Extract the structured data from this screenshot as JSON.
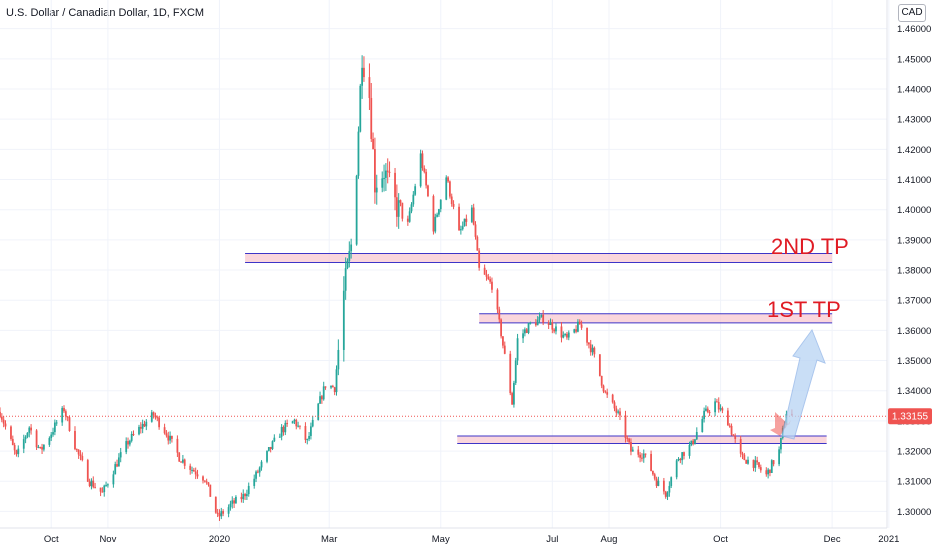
{
  "header": {
    "title": "U.S. Dollar / Canadian Dollar, 1D, FXCM",
    "currency_badge": "CAD"
  },
  "price_label": "1.33155",
  "colors": {
    "up": "#26a69a",
    "down": "#ef5350",
    "zone_fill": "#f8c8d0",
    "zone_border": "#3d35c8",
    "annotation_text": "#e01b24",
    "arrow_fill": "#b8d4f4",
    "price_line": "#ef5350"
  },
  "annotations": {
    "second_tp": "2ND TP",
    "first_tp": "1ST TP"
  },
  "chart_data": {
    "type": "candlestick",
    "title": "U.S. Dollar / Canadian Dollar, 1D, FXCM",
    "ylim": [
      1.2945,
      1.4695
    ],
    "y_ticks": [
      1.3,
      1.31,
      1.32,
      1.33,
      1.34,
      1.35,
      1.36,
      1.37,
      1.38,
      1.39,
      1.4,
      1.41,
      1.42,
      1.43,
      1.44,
      1.45,
      1.46
    ],
    "y_tick_labels": [
      "1.30000",
      "1.31000",
      "1.32000",
      "1.33000",
      "1.34000",
      "1.35000",
      "1.36000",
      "1.37000",
      "1.38000",
      "1.39000",
      "1.40000",
      "1.41000",
      "1.42000",
      "1.43000",
      "1.44000",
      "1.45000",
      "1.46000"
    ],
    "x_range": [
      "2019-09-03",
      "2020-12-31"
    ],
    "x_ticks": [
      {
        "label": "Oct",
        "date": "2019-10-01"
      },
      {
        "label": "Nov",
        "date": "2019-11-01"
      },
      {
        "label": "2020",
        "date": "2020-01-01"
      },
      {
        "label": "Mar",
        "date": "2020-03-01"
      },
      {
        "label": "May",
        "date": "2020-05-01"
      },
      {
        "label": "Jul",
        "date": "2020-07-01"
      },
      {
        "label": "Aug",
        "date": "2020-08-01"
      },
      {
        "label": "Oct",
        "date": "2020-10-01"
      },
      {
        "label": "Dec",
        "date": "2020-12-01"
      },
      {
        "label": "2021",
        "date": "2021-01-01"
      }
    ],
    "last_price": 1.33155,
    "zones": [
      {
        "label": "2ND TP",
        "from": "2020-01-15",
        "to": "2020-12-01",
        "low": 1.3825,
        "high": 1.3855
      },
      {
        "label": "1ST TP",
        "from": "2020-05-22",
        "to": "2020-12-01",
        "low": 1.3625,
        "high": 1.3655
      },
      {
        "label": "",
        "from": "2020-05-10",
        "to": "2020-11-28",
        "low": 1.3225,
        "high": 1.325
      }
    ],
    "path": [
      [
        "2019-09-03",
        1.333
      ],
      [
        "2019-09-12",
        1.318
      ],
      [
        "2019-09-19",
        1.328
      ],
      [
        "2019-09-25",
        1.32
      ],
      [
        "2019-10-01",
        1.326
      ],
      [
        "2019-10-08",
        1.334
      ],
      [
        "2019-10-15",
        1.32
      ],
      [
        "2019-10-22",
        1.31
      ],
      [
        "2019-10-29",
        1.306
      ],
      [
        "2019-11-05",
        1.315
      ],
      [
        "2019-11-12",
        1.323
      ],
      [
        "2019-11-19",
        1.328
      ],
      [
        "2019-11-26",
        1.332
      ],
      [
        "2019-12-03",
        1.326
      ],
      [
        "2019-12-10",
        1.318
      ],
      [
        "2019-12-17",
        1.314
      ],
      [
        "2019-12-24",
        1.311
      ],
      [
        "2019-12-31",
        1.298
      ],
      [
        "2020-01-07",
        1.302
      ],
      [
        "2020-01-14",
        1.305
      ],
      [
        "2020-01-21",
        1.312
      ],
      [
        "2020-01-28",
        1.32
      ],
      [
        "2020-02-04",
        1.327
      ],
      [
        "2020-02-11",
        1.33
      ],
      [
        "2020-02-18",
        1.323
      ],
      [
        "2020-02-24",
        1.335
      ],
      [
        "2020-02-28",
        1.342
      ],
      [
        "2020-03-04",
        1.341
      ],
      [
        "2020-03-09",
        1.372
      ],
      [
        "2020-03-13",
        1.388
      ],
      [
        "2020-03-16",
        1.415
      ],
      [
        "2020-03-19",
        1.452
      ],
      [
        "2020-03-23",
        1.438
      ],
      [
        "2020-03-26",
        1.409
      ],
      [
        "2020-03-31",
        1.413
      ],
      [
        "2020-04-06",
        1.402
      ],
      [
        "2020-04-13",
        1.395
      ],
      [
        "2020-04-20",
        1.418
      ],
      [
        "2020-04-27",
        1.394
      ],
      [
        "2020-05-04",
        1.411
      ],
      [
        "2020-05-11",
        1.392
      ],
      [
        "2020-05-18",
        1.4
      ],
      [
        "2020-05-22",
        1.38
      ],
      [
        "2020-05-29",
        1.375
      ],
      [
        "2020-06-03",
        1.359
      ],
      [
        "2020-06-09",
        1.336
      ],
      [
        "2020-06-12",
        1.357
      ],
      [
        "2020-06-19",
        1.362
      ],
      [
        "2020-06-26",
        1.364
      ],
      [
        "2020-07-02",
        1.361
      ],
      [
        "2020-07-09",
        1.357
      ],
      [
        "2020-07-16",
        1.362
      ],
      [
        "2020-07-23",
        1.353
      ],
      [
        "2020-07-30",
        1.339
      ],
      [
        "2020-08-06",
        1.332
      ],
      [
        "2020-08-13",
        1.32
      ],
      [
        "2020-08-20",
        1.319
      ],
      [
        "2020-08-27",
        1.31
      ],
      [
        "2020-09-01",
        1.306
      ],
      [
        "2020-09-08",
        1.318
      ],
      [
        "2020-09-15",
        1.322
      ],
      [
        "2020-09-22",
        1.332
      ],
      [
        "2020-09-28",
        1.336
      ],
      [
        "2020-10-05",
        1.33
      ],
      [
        "2020-10-12",
        1.318
      ],
      [
        "2020-10-19",
        1.316
      ],
      [
        "2020-10-26",
        1.312
      ],
      [
        "2020-11-02",
        1.32
      ],
      [
        "2020-11-06",
        1.333
      ],
      [
        "2020-11-09",
        1.33155
      ]
    ]
  }
}
